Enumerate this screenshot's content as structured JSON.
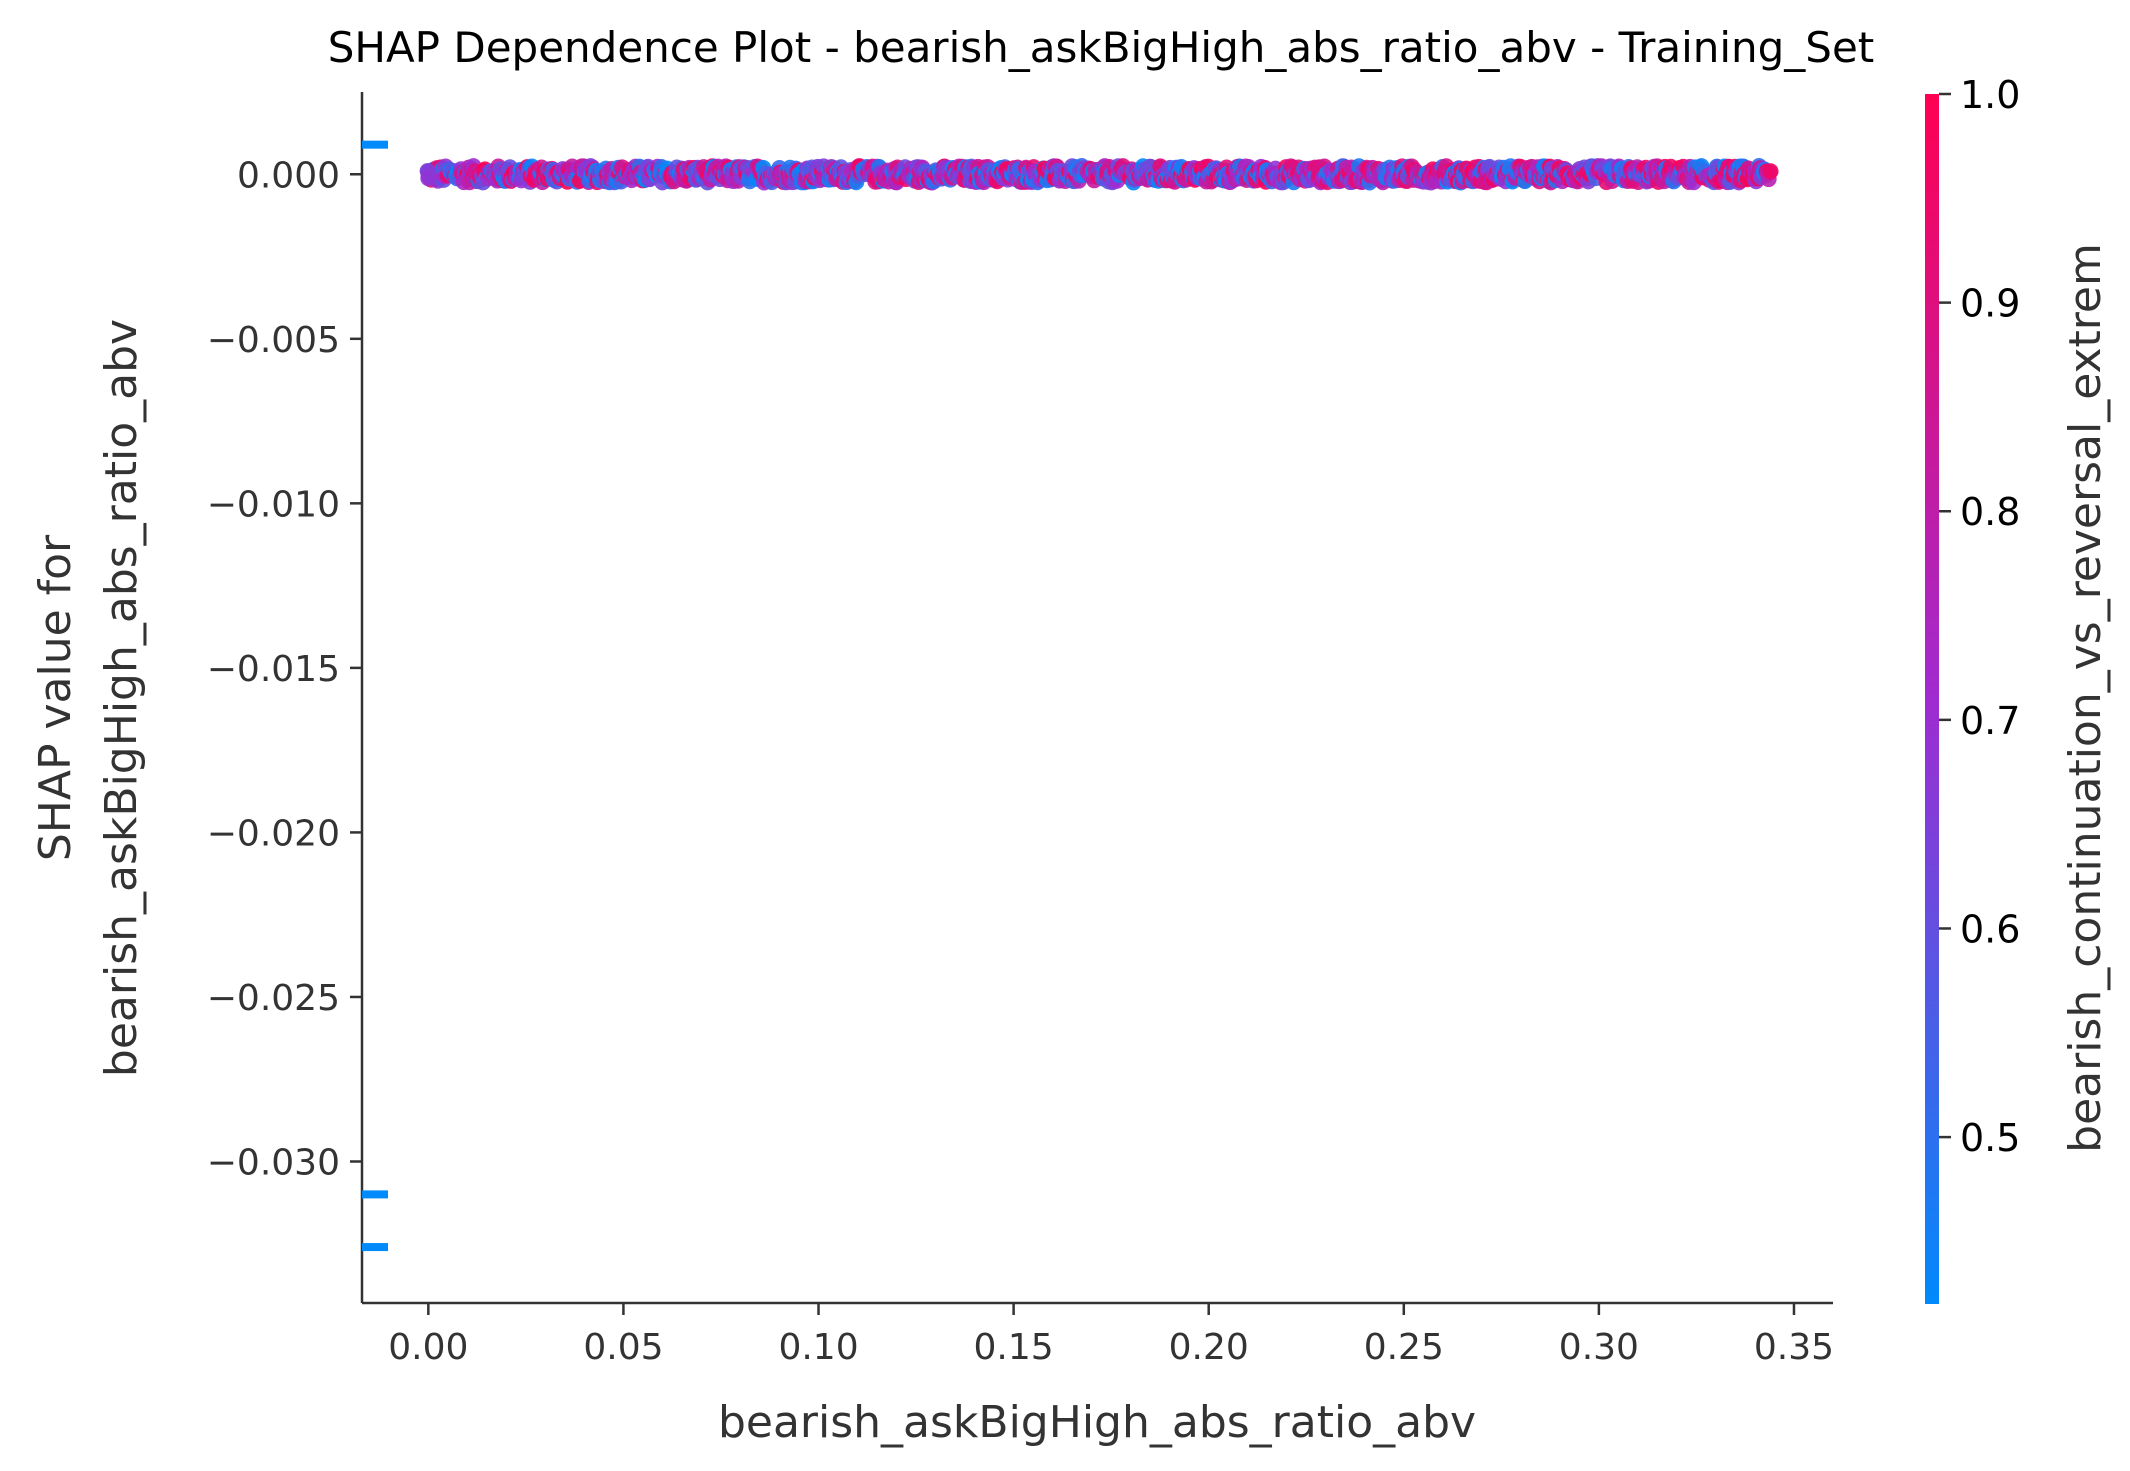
{
  "chart_data": {
    "type": "scatter",
    "title": "SHAP Dependence Plot - bearish_askBigHigh_abs_ratio_abv - Training_Set",
    "xlabel": "bearish_askBigHigh_abs_ratio_abv",
    "ylabel_line1": "SHAP value for",
    "ylabel_line2": "bearish_askBigHigh_abs_ratio_abv",
    "colorbar_label": "bearish_continuation_vs_reversal_extrem",
    "xlim": [
      -0.017,
      0.36
    ],
    "ylim": [
      -0.0343,
      0.0025
    ],
    "x_ticks": [
      0.0,
      0.05,
      0.1,
      0.15,
      0.2,
      0.25,
      0.3,
      0.35
    ],
    "x_tick_labels": [
      "0.00",
      "0.05",
      "0.10",
      "0.15",
      "0.20",
      "0.25",
      "0.30",
      "0.35"
    ],
    "y_ticks": [
      0.0,
      -0.005,
      -0.01,
      -0.015,
      -0.02,
      -0.025,
      -0.03
    ],
    "y_tick_labels": [
      "0.000",
      "−0.005",
      "−0.010",
      "−0.015",
      "−0.020",
      "−0.025",
      "−0.030"
    ],
    "colorbar_range": [
      0.42,
      1.0
    ],
    "colorbar_ticks": [
      0.5,
      0.6,
      0.7,
      0.8,
      0.9,
      1.0
    ],
    "colorbar_tick_labels": [
      "0.5",
      "0.6",
      "0.7",
      "0.8",
      "0.9",
      "1.0"
    ],
    "color_low": "#008afb",
    "color_high": "#ff0052",
    "color_mid": "#a02bd0",
    "points_band": {
      "x_start": 0.0,
      "x_end": 0.344,
      "y_center": 0.0,
      "y_spread": 0.00025
    },
    "nan_markers": [
      {
        "y": 0.0009,
        "value": 0.42
      },
      {
        "y": -0.031,
        "value": 0.42
      },
      {
        "y": -0.0326,
        "value": 0.42
      }
    ],
    "grid": false,
    "legend": "colorbar-right"
  }
}
